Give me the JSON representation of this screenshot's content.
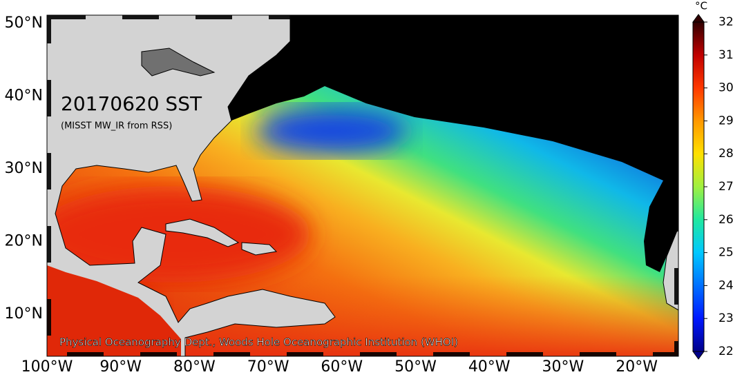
{
  "title": "20170620 SST",
  "subtitle": "(MISST MW_IR from RSS)",
  "credit": "Physical Oceanography Dept., Woods Hole Oceanographic Institution (WHOI)",
  "lon_labels": [
    "100°W",
    "90°W",
    "80°W",
    "70°W",
    "60°W",
    "50°W",
    "40°W",
    "30°W",
    "20°W"
  ],
  "lat_labels": [
    "50°N",
    "40°N",
    "30°N",
    "20°N",
    "10°N"
  ],
  "colorbar": {
    "unit": "°C",
    "range": [
      22,
      32
    ],
    "ticks": [
      22,
      23,
      24,
      25,
      26,
      27,
      28,
      29,
      30,
      31,
      32
    ],
    "colors": [
      "#00008a",
      "#0018ff",
      "#0070ff",
      "#00c8ff",
      "#20e8a0",
      "#a0f040",
      "#ffe000",
      "#ff9800",
      "#ff3800",
      "#c00000",
      "#300000"
    ]
  }
}
